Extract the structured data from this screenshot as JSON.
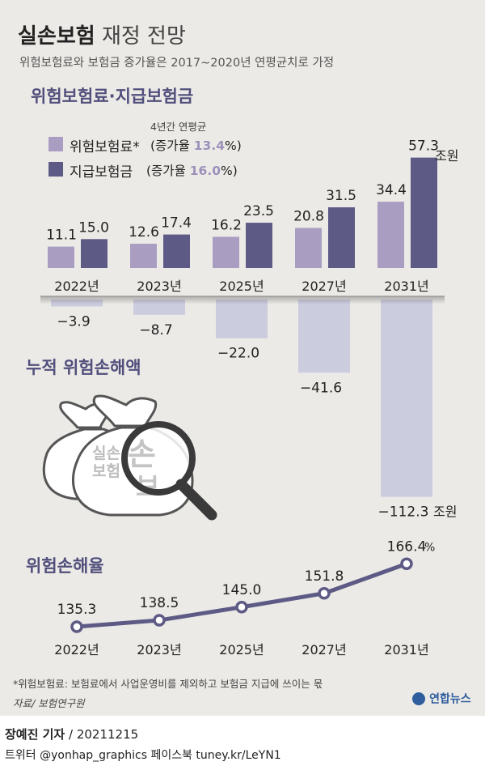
{
  "header": {
    "title_bold": "실손보험",
    "title_light": "재정 전망",
    "subtitle": "위험보험료와 보험금 증가율은 2017~2020년 연평균치로 가정"
  },
  "premium_section": {
    "title": "위험보험료·지급보험금",
    "avg_note": "4년간 연평균",
    "legend": [
      {
        "label": "위험보험료*",
        "growth_prefix": "(증가율 ",
        "growth": "13.4",
        "growth_suffix": "%)",
        "color": "#a99ec2"
      },
      {
        "label": "지급보험금",
        "growth_prefix": "(증가율 ",
        "growth": "16.0",
        "growth_suffix": "%)",
        "color": "#5d5b85"
      }
    ]
  },
  "loss_section": {
    "title": "누적 위험손해액"
  },
  "ratio_section": {
    "title": "위험손해율"
  },
  "illustration": {
    "bag_text_1": "실손",
    "bag_text_2": "보험",
    "magnified_1": "손",
    "magnified_2": "보"
  },
  "colors": {
    "premium": "#a99ec2",
    "claims": "#5d5b85",
    "loss": "#ccccdf",
    "line": "#5d5b85",
    "growth_text": "#9d91ba",
    "section_title": "#514f7c"
  },
  "chart_data": [
    {
      "type": "bar",
      "categories": [
        "2022년",
        "2023년",
        "2025년",
        "2027년",
        "2031년"
      ],
      "series": [
        {
          "name": "위험보험료*",
          "values": [
            11.1,
            12.6,
            16.2,
            20.8,
            34.4
          ]
        },
        {
          "name": "지급보험금",
          "values": [
            15.0,
            17.4,
            23.5,
            31.5,
            57.3
          ]
        }
      ],
      "labels": {
        "premium": [
          "11.1",
          "12.6",
          "16.2",
          "20.8",
          "34.4"
        ],
        "claims": [
          "15.0",
          "17.4",
          "23.5",
          "31.5",
          "57.3"
        ]
      },
      "unit": "조원",
      "title": "위험보험료·지급보험금"
    },
    {
      "type": "bar",
      "categories": [
        "2022년",
        "2023년",
        "2025년",
        "2027년",
        "2031년"
      ],
      "values": [
        -3.9,
        -8.7,
        -22.0,
        -41.6,
        -112.3
      ],
      "labels": [
        "−3.9",
        "−8.7",
        "−22.0",
        "−41.6",
        "−112.3"
      ],
      "unit": "조원",
      "title": "누적 위험손해액"
    },
    {
      "type": "line",
      "categories": [
        "2022년",
        "2023년",
        "2025년",
        "2027년",
        "2031년"
      ],
      "values": [
        135.3,
        138.5,
        145.0,
        151.8,
        166.4
      ],
      "labels": [
        "135.3",
        "138.5",
        "145.0",
        "151.8",
        "166.4"
      ],
      "unit": "%",
      "title": "위험손해율"
    }
  ],
  "notes": {
    "footnote": "*위험보험료: 보험료에서 사업운영비를 제외하고 보험금 지급에 쓰이는 몫",
    "source": "자료/ 보험연구원",
    "logo": "연합뉴스"
  },
  "footer": {
    "reporter": "장예진 기자",
    "date": " / 20211215",
    "social": "트위터 @yonhap_graphics  페이스북 tuney.kr/LeYN1"
  }
}
